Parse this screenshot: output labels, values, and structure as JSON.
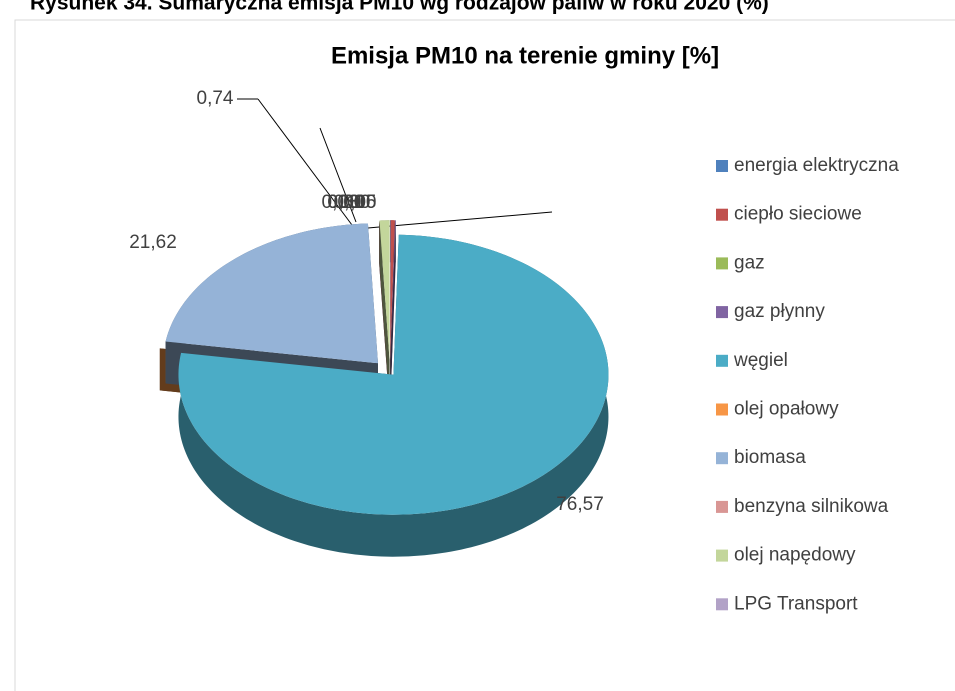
{
  "chart_data": {
    "type": "pie",
    "caption": "Rysunek 34. Sumaryczna emisja PM10 wg rodzajów paliw w roku 2020 (%)",
    "title": "Emisja PM10 na terenie gminy [%]",
    "categories": [
      "energia elektryczna",
      "ciepło sieciowe",
      "gaz",
      "gaz płynny",
      "węgiel",
      "olej opałowy",
      "biomasa",
      "benzyna silnikowa",
      "olej napędowy",
      "LPG Transport"
    ],
    "values": [
      0.03,
      0.31,
      0.0,
      0.05,
      76.57,
      0.0,
      21.62,
      0.0,
      0.74,
      0.0
    ],
    "value_labels": [
      "0,03",
      "0,31",
      "0,00",
      "0,05",
      "76,57",
      "0,00",
      "21,62",
      "0,00",
      "0,74",
      "0,00"
    ],
    "colors": [
      "#4f81bd",
      "#c0504d",
      "#9bbb59",
      "#8064a2",
      "#4bacc6",
      "#f79646",
      "#95b3d7",
      "#d99694",
      "#c3d69b",
      "#b2a2c7"
    ],
    "legend": "right"
  }
}
